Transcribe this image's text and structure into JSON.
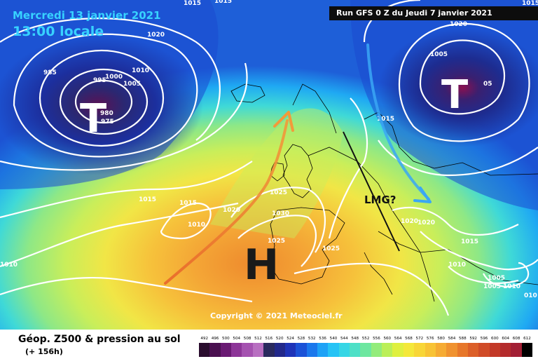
{
  "header": {
    "date": "Mercredi 13 janvier 2021",
    "local_time": "13:00 locale",
    "run": "Run GFS 0 Z du Jeudi 7 janvier 2021"
  },
  "annotations": {
    "low_west": "T",
    "low_east": "T",
    "high": "H",
    "lmg": "LMG?"
  },
  "isobars": [
    "1015",
    "1015",
    "985",
    "995",
    "1000",
    "1005",
    "980",
    "975",
    "1010",
    "1020",
    "1010",
    "1005",
    "1015",
    "1020",
    "1025",
    "1030",
    "1015",
    "1010",
    "1020",
    "1025",
    "1020",
    "1020",
    "1015",
    "1010",
    "1005",
    "1010",
    "1005",
    "010",
    "1015",
    "05",
    "1015",
    "1025"
  ],
  "copyright": "Copyright © 2021 Meteociel.fr",
  "legend": {
    "title": "Géop. Z500 & pression au sol",
    "forecast": "(+ 156h)",
    "scale": [
      "492",
      "496",
      "500",
      "504",
      "508",
      "512",
      "516",
      "520",
      "524",
      "528",
      "532",
      "536",
      "540",
      "544",
      "548",
      "552",
      "556",
      "560",
      "564",
      "568",
      "572",
      "576",
      "580",
      "584",
      "588",
      "592",
      "596",
      "600",
      "604",
      "608",
      "612"
    ],
    "colors": [
      "#2a0d2e",
      "#4a1050",
      "#6a1a73",
      "#8d3598",
      "#a552b0",
      "#b86fc1",
      "#2a2a5e",
      "#22288a",
      "#1e33b8",
      "#1b52d7",
      "#1b78ec",
      "#1ea2f6",
      "#26c3f5",
      "#36d6e5",
      "#4ee0c7",
      "#6ee7a0",
      "#93ec7b",
      "#bbef58",
      "#dff03f",
      "#f4e83a",
      "#f8d637",
      "#f8c335",
      "#f6ab33",
      "#f0922f",
      "#e7772a",
      "#dc5f28",
      "#d04b27",
      "#c33927",
      "#b42b2c",
      "#a21f34",
      "#000000"
    ]
  }
}
